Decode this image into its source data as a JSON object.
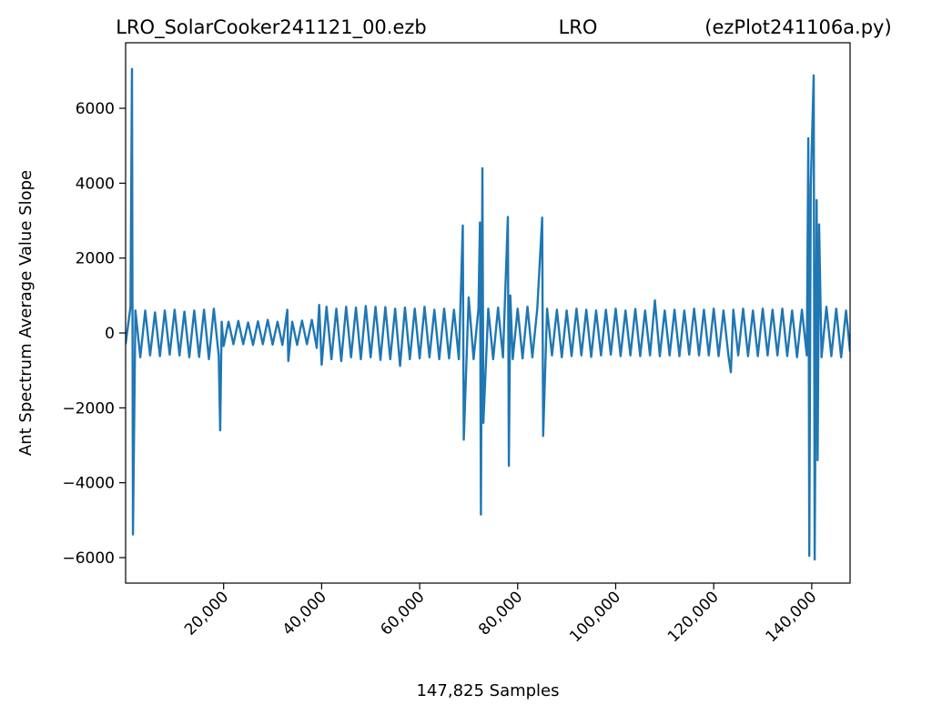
{
  "chart_data": {
    "type": "line",
    "titles": [
      "LRO_SolarCooker241121_00.ezb",
      "LRO",
      "(ezPlot241106a.py)"
    ],
    "xlabel": "147,825 Samples",
    "ylabel": "Ant Spectrum Average Value Slope",
    "color": "#1f77b4",
    "xlim": [
      0,
      147825
    ],
    "ylim": [
      -6680,
      7750
    ],
    "xticks": [
      {
        "value": 20000,
        "label": "20,000"
      },
      {
        "value": 40000,
        "label": "40,000"
      },
      {
        "value": 60000,
        "label": "60,000"
      },
      {
        "value": 80000,
        "label": "80,000"
      },
      {
        "value": 100000,
        "label": "100,000"
      },
      {
        "value": 120000,
        "label": "120,000"
      },
      {
        "value": 140000,
        "label": "140,000"
      }
    ],
    "yticks": [
      {
        "value": -6000,
        "label": "−6000"
      },
      {
        "value": -4000,
        "label": "−4000"
      },
      {
        "value": -2000,
        "label": "−2000"
      },
      0,
      2000,
      4000,
      6000
    ],
    "x": [
      0,
      1000,
      1300,
      1500,
      2000,
      3000,
      4000,
      5000,
      6000,
      7000,
      8000,
      9000,
      10000,
      11000,
      12000,
      13000,
      14000,
      15000,
      16000,
      17000,
      18000,
      19000,
      19300,
      19600,
      20000,
      21000,
      22000,
      23000,
      24000,
      25000,
      26000,
      27000,
      28000,
      29000,
      30000,
      31000,
      32000,
      33000,
      33200,
      34000,
      35000,
      36000,
      37000,
      38000,
      39000,
      39500,
      40000,
      41000,
      42000,
      43000,
      44000,
      45000,
      46000,
      47000,
      48000,
      49000,
      50000,
      51000,
      52000,
      53000,
      54000,
      55000,
      56000,
      57000,
      58000,
      59000,
      60000,
      61000,
      62000,
      63000,
      64000,
      65000,
      66000,
      67000,
      68000,
      68800,
      69000,
      70000,
      71000,
      72000,
      72300,
      72500,
      72800,
      73000,
      74000,
      75000,
      76000,
      77000,
      78000,
      78200,
      78500,
      79000,
      80000,
      81000,
      82000,
      83000,
      84000,
      85000,
      85200,
      86000,
      87000,
      88000,
      89000,
      90000,
      91000,
      92000,
      93000,
      94000,
      95000,
      96000,
      97000,
      98000,
      99000,
      100000,
      101000,
      102000,
      103000,
      104000,
      105000,
      106000,
      107000,
      108000,
      109000,
      110000,
      111000,
      112000,
      113000,
      114000,
      115000,
      116000,
      117000,
      118000,
      119000,
      120000,
      121000,
      122000,
      123000,
      123500,
      124000,
      125000,
      126000,
      127000,
      128000,
      129000,
      130000,
      131000,
      132000,
      133000,
      134000,
      135000,
      136000,
      137000,
      138000,
      139000,
      139300,
      139500,
      139800,
      140400,
      140600,
      141000,
      141200,
      141500,
      142000,
      143000,
      144000,
      145000,
      146000,
      147000,
      147825
    ],
    "values": [
      -300,
      700,
      7050,
      -5380,
      600,
      -650,
      600,
      -600,
      550,
      -620,
      600,
      -580,
      620,
      -600,
      570,
      -650,
      600,
      -640,
      620,
      -700,
      650,
      -600,
      -2600,
      300,
      -350,
      300,
      -300,
      320,
      -300,
      280,
      -320,
      310,
      -300,
      350,
      -310,
      300,
      -320,
      620,
      -750,
      300,
      -320,
      330,
      -300,
      350,
      -400,
      750,
      -850,
      700,
      -700,
      650,
      -750,
      700,
      -650,
      680,
      -700,
      720,
      -650,
      700,
      -720,
      690,
      -700,
      650,
      -880,
      680,
      -700,
      650,
      -680,
      700,
      -650,
      620,
      -700,
      650,
      -680,
      620,
      -700,
      2870,
      -2850,
      950,
      -700,
      650,
      2950,
      -4850,
      4400,
      -2400,
      650,
      -700,
      680,
      -650,
      3100,
      -3550,
      1000,
      -700,
      650,
      -680,
      700,
      -650,
      650,
      3080,
      -2750,
      650,
      -600,
      620,
      -650,
      600,
      -620,
      650,
      -600,
      620,
      -640,
      600,
      -600,
      620,
      -580,
      650,
      -620,
      600,
      -600,
      640,
      -620,
      600,
      -600,
      870,
      -620,
      600,
      -600,
      620,
      -620,
      600,
      -580,
      650,
      -600,
      620,
      -600,
      650,
      -620,
      600,
      -600,
      -1050,
      620,
      -600,
      650,
      -620,
      600,
      -620,
      650,
      -600,
      620,
      -600,
      650,
      -620,
      600,
      -650,
      620,
      -600,
      5200,
      -5950,
      3900,
      6880,
      -6050,
      3550,
      -3400,
      2900,
      -650,
      700,
      -620,
      650,
      -650,
      600,
      -500
    ]
  }
}
